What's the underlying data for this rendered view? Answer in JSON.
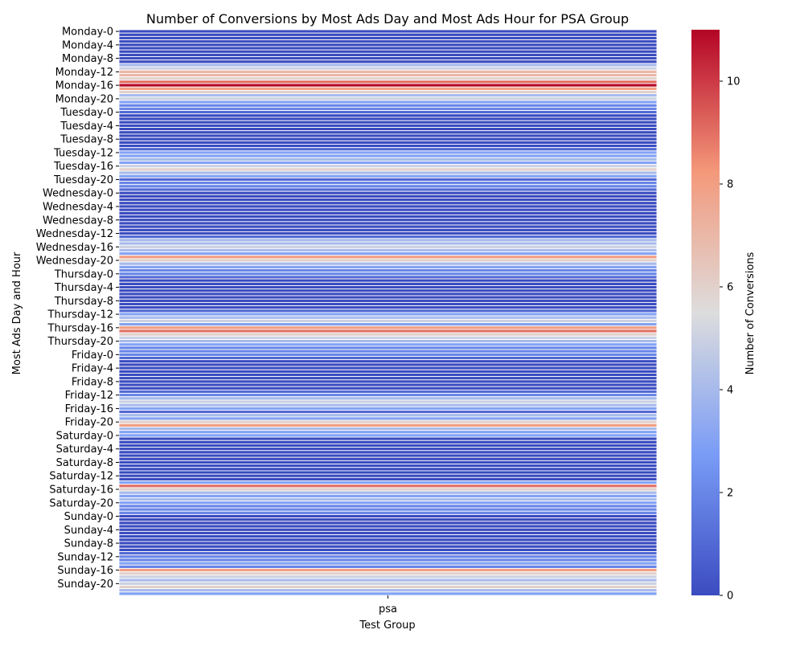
{
  "chart_data": {
    "type": "heatmap",
    "title": "Number of Conversions by Most Ads Day and Most Ads Hour for PSA Group",
    "xlabel": "Test Group",
    "ylabel": "Most Ads Day and Hour",
    "x_categories": [
      "psa"
    ],
    "days": [
      "Monday",
      "Tuesday",
      "Wednesday",
      "Thursday",
      "Friday",
      "Saturday",
      "Sunday"
    ],
    "hours": [
      0,
      1,
      2,
      3,
      4,
      5,
      6,
      7,
      8,
      9,
      10,
      11,
      12,
      13,
      14,
      15,
      16,
      17,
      18,
      19,
      20,
      21,
      22,
      23
    ],
    "tick_step_hours": 4,
    "values": [
      0,
      0,
      0,
      0,
      0,
      0,
      0,
      0,
      0,
      0,
      4,
      5,
      7,
      7,
      6,
      9,
      11,
      8,
      6,
      4,
      5,
      3,
      2,
      2,
      1,
      0,
      0,
      0,
      0,
      0,
      0,
      0,
      0,
      0,
      0,
      1,
      3,
      3,
      4,
      3,
      5,
      6,
      4,
      3,
      1,
      2,
      2,
      1,
      0,
      0,
      0,
      0,
      0,
      0,
      0,
      0,
      0,
      0,
      0,
      0,
      0,
      1,
      4,
      4,
      5,
      4,
      3,
      8,
      6,
      4,
      3,
      2,
      2,
      1,
      0,
      0,
      0,
      0,
      0,
      0,
      0,
      0,
      0,
      1,
      3,
      4,
      5,
      3,
      8,
      9,
      6,
      5,
      4,
      3,
      2,
      2,
      2,
      1,
      0,
      0,
      0,
      0,
      0,
      0,
      0,
      0,
      0,
      1,
      2,
      4,
      5,
      4,
      3,
      1,
      4,
      3,
      6,
      8,
      4,
      3,
      3,
      0,
      0,
      0,
      0,
      0,
      0,
      0,
      0,
      0,
      0,
      0,
      0,
      0,
      3,
      9,
      6,
      4,
      3,
      4,
      3,
      2,
      2,
      2,
      0,
      0,
      0,
      0,
      0,
      0,
      0,
      0,
      0,
      0,
      0,
      1,
      2,
      2,
      3,
      2,
      8,
      6,
      5,
      4,
      5,
      6,
      4,
      3
    ],
    "colorbar": {
      "label": "Number of Conversions",
      "vmin": 0,
      "vmax": 11,
      "ticks": [
        0,
        2,
        4,
        6,
        8,
        10
      ],
      "colormap": "coolwarm",
      "color_low": "#3b4cc0",
      "color_mid": "#dddddd",
      "color_high": "#b40426"
    },
    "grid_line_color": "#ffffff"
  }
}
